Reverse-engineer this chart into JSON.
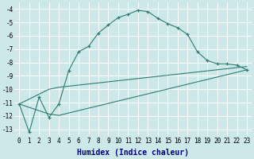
{
  "xlabel": "Humidex (Indice chaleur)",
  "background_color": "#cce8e8",
  "grid_color": "#b0d0d0",
  "line_color": "#2e7d72",
  "xlim": [
    -0.5,
    23.5
  ],
  "ylim": [
    -13.5,
    -3.5
  ],
  "xticks": [
    0,
    1,
    2,
    3,
    4,
    5,
    6,
    7,
    8,
    9,
    10,
    11,
    12,
    13,
    14,
    15,
    16,
    17,
    18,
    19,
    20,
    21,
    22,
    23
  ],
  "yticks": [
    -13,
    -12,
    -11,
    -10,
    -9,
    -8,
    -7,
    -6,
    -5,
    -4
  ],
  "curve1_x": [
    0,
    1,
    2,
    3,
    4,
    5,
    6,
    7,
    8,
    9,
    10,
    11,
    12,
    13,
    14,
    15,
    16,
    17,
    18,
    19,
    20,
    21,
    22,
    23
  ],
  "curve1_y": [
    -11.1,
    -13.2,
    -10.6,
    -12.1,
    -11.1,
    -8.6,
    -7.2,
    -6.8,
    -5.8,
    -5.2,
    -4.65,
    -4.4,
    -4.1,
    -4.2,
    -4.7,
    -5.1,
    -5.4,
    -5.9,
    -7.2,
    -7.85,
    -8.1,
    -8.1,
    -8.2,
    -8.55
  ],
  "curve2_x": [
    0,
    3,
    4,
    23
  ],
  "curve2_y": [
    -11.1,
    -10.0,
    -9.85,
    -8.3
  ],
  "curve3_x": [
    0,
    3,
    4,
    23
  ],
  "curve3_y": [
    -11.1,
    -11.85,
    -11.95,
    -8.55
  ],
  "xlabel_color": "#000080",
  "xlabel_fontsize": 7,
  "tick_fontsize": 5.5
}
